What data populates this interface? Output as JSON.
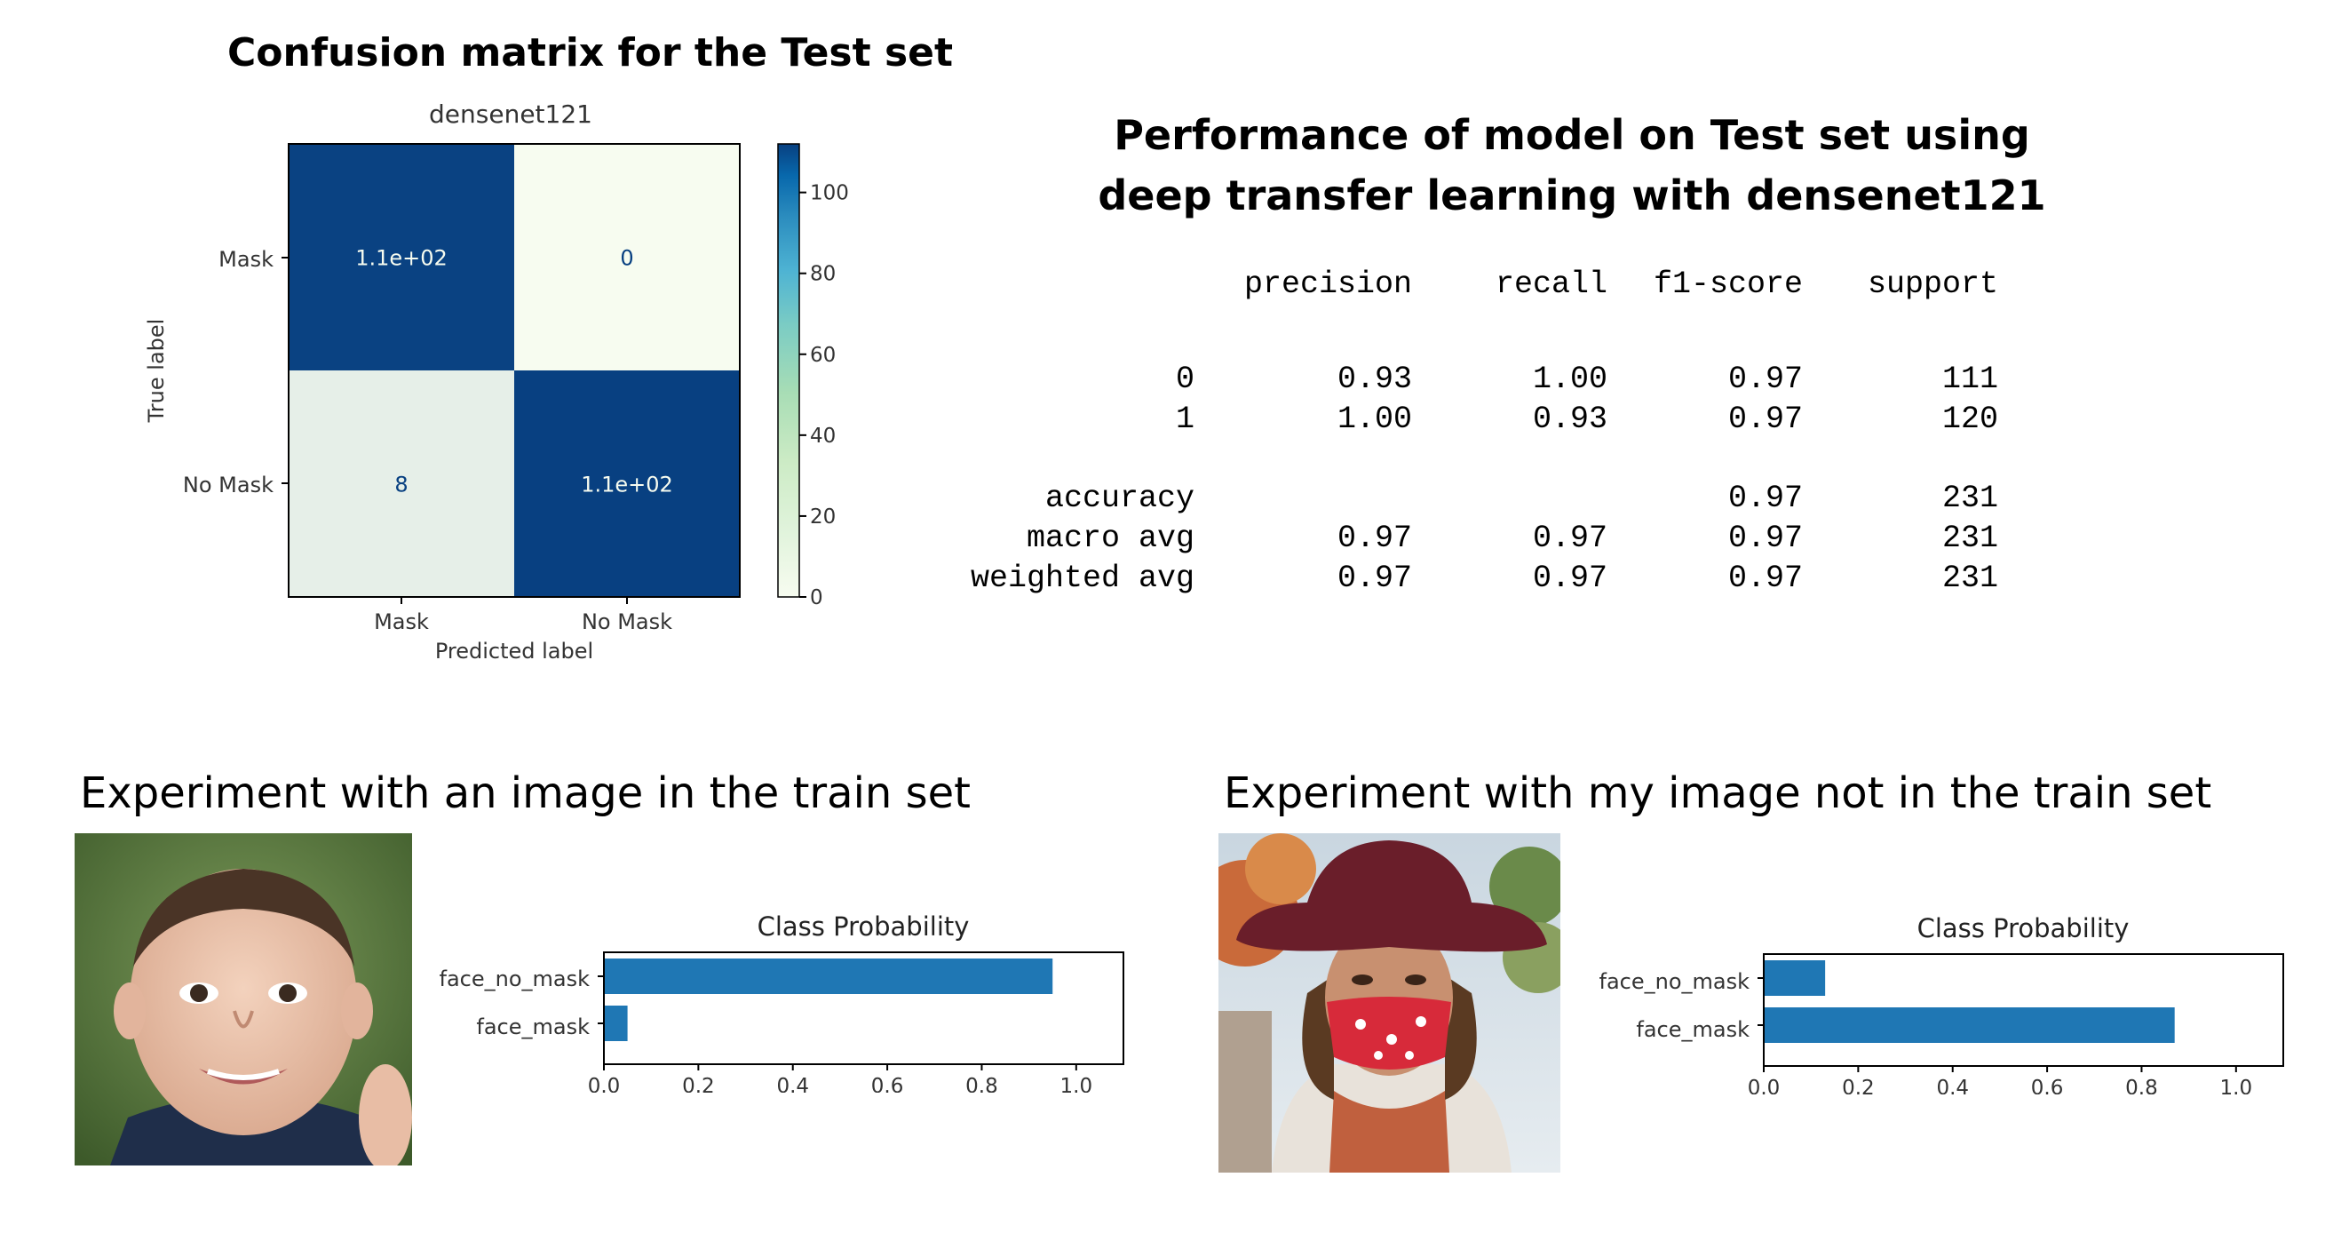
{
  "confusion_section": {
    "title": "Confusion matrix for the Test set"
  },
  "performance_section": {
    "title_line1": "Performance of model on Test set using",
    "title_line2": "deep transfer learning with densenet121",
    "report": {
      "headers": [
        "precision",
        "recall",
        "f1-score",
        "support"
      ],
      "rows": [
        {
          "label": "0",
          "precision": "0.93",
          "recall": "1.00",
          "f1": "0.97",
          "support": "111"
        },
        {
          "label": "1",
          "precision": "1.00",
          "recall": "0.93",
          "f1": "0.97",
          "support": "120"
        },
        {
          "label": "accuracy",
          "precision": "",
          "recall": "",
          "f1": "0.97",
          "support": "231"
        },
        {
          "label": "macro avg",
          "precision": "0.97",
          "recall": "0.97",
          "f1": "0.97",
          "support": "231"
        },
        {
          "label": "weighted avg",
          "precision": "0.97",
          "recall": "0.97",
          "f1": "0.97",
          "support": "231"
        }
      ]
    }
  },
  "experiment_train": {
    "title": "Experiment with an image in the train set"
  },
  "experiment_mine": {
    "title": "Experiment with my image not in the train set"
  },
  "chart_data": [
    {
      "type": "heatmap",
      "title": "densenet121",
      "xlabel": "Predicted label",
      "ylabel": "True label",
      "x_categories": [
        "Mask",
        "No Mask"
      ],
      "y_categories": [
        "Mask",
        "No Mask"
      ],
      "values": [
        [
          111,
          0
        ],
        [
          8,
          112
        ]
      ],
      "cell_labels": [
        [
          "1.1e+02",
          "0"
        ],
        [
          "8",
          "1.1e+02"
        ]
      ],
      "colorbar": {
        "range": [
          0,
          112
        ],
        "ticks": [
          "0",
          "20",
          "40",
          "60",
          "80",
          "100"
        ]
      },
      "colors": {
        "low": "#f7fcf0",
        "high": "#084081"
      }
    },
    {
      "type": "bar",
      "orientation": "horizontal",
      "title": "Class Probability",
      "categories": [
        "face_no_mask",
        "face_mask"
      ],
      "values": [
        0.95,
        0.05
      ],
      "xlim": [
        0.0,
        1.1
      ],
      "xticks": [
        "0.0",
        "0.2",
        "0.4",
        "0.6",
        "0.8",
        "1.0"
      ],
      "color": "#1f77b4"
    },
    {
      "type": "bar",
      "orientation": "horizontal",
      "title": "Class Probability",
      "categories": [
        "face_no_mask",
        "face_mask"
      ],
      "values": [
        0.13,
        0.87
      ],
      "xlim": [
        0.0,
        1.1
      ],
      "xticks": [
        "0.0",
        "0.2",
        "0.4",
        "0.6",
        "0.8",
        "1.0"
      ],
      "color": "#1f77b4"
    }
  ]
}
